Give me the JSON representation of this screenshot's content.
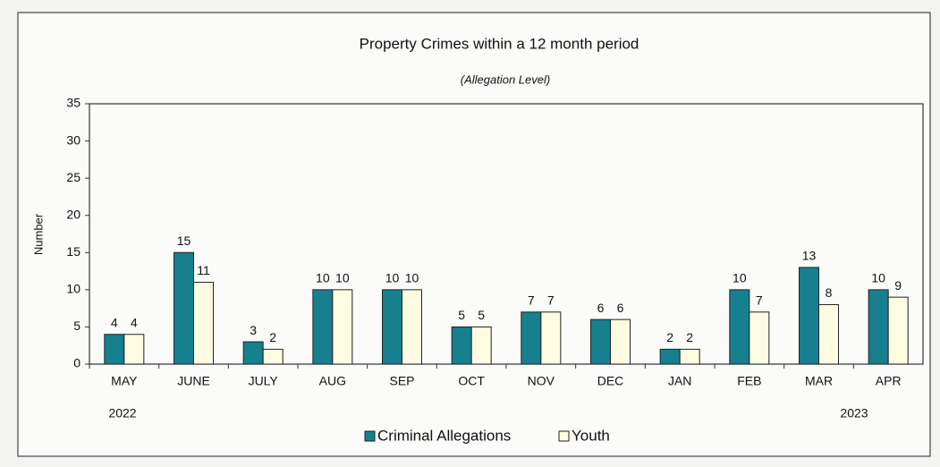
{
  "chart_data": {
    "type": "bar",
    "title": "Property Crimes within a 12 month period",
    "subtitle": "(Allegation Level)",
    "ylabel": "Number",
    "categories": [
      "MAY",
      "JUNE",
      "JULY",
      "AUG",
      "SEP",
      "OCT",
      "NOV",
      "DEC",
      "JAN",
      "FEB",
      "MAR",
      "APR"
    ],
    "series": [
      {
        "name": "Criminal Allegations",
        "color": "#17808f",
        "values": [
          4,
          15,
          3,
          10,
          10,
          5,
          7,
          6,
          2,
          10,
          13,
          10
        ]
      },
      {
        "name": "Youth",
        "color": "#fdfbe2",
        "values": [
          4,
          11,
          2,
          10,
          10,
          5,
          7,
          6,
          2,
          7,
          8,
          9
        ]
      }
    ],
    "annotations": [
      "2022",
      "2023"
    ],
    "ylim": [
      0,
      35
    ],
    "yticks": [
      0,
      5,
      10,
      15,
      20,
      25,
      30,
      35
    ],
    "legend": "bottom"
  }
}
